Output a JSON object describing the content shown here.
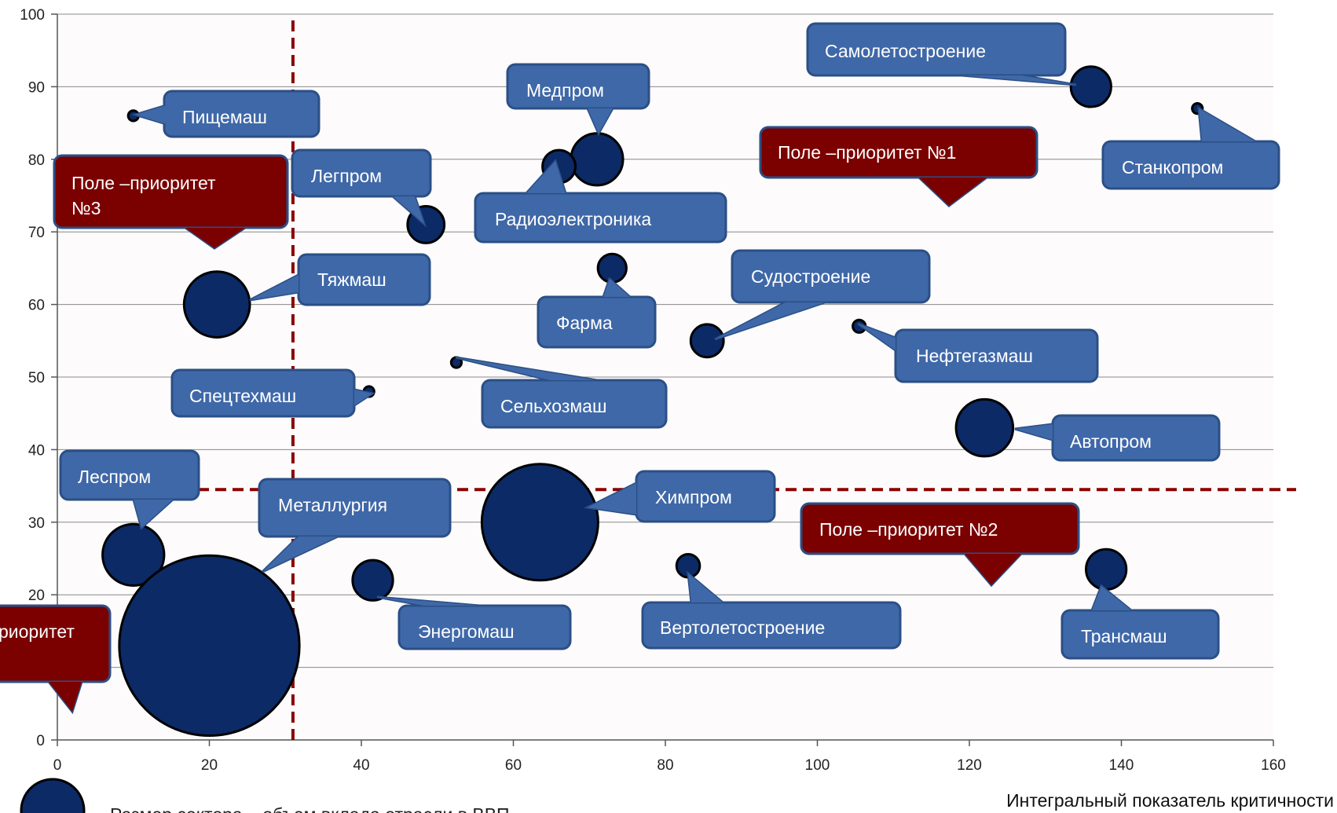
{
  "chart_data": {
    "type": "bubble",
    "xlabel": "Интегральный показатель критичности",
    "ylabel": "",
    "xlim": [
      0,
      160
    ],
    "ylim": [
      0,
      100
    ],
    "xticks": [
      0,
      20,
      40,
      60,
      80,
      100,
      120,
      140,
      160
    ],
    "yticks": [
      0,
      10,
      20,
      30,
      40,
      50,
      60,
      70,
      80,
      90,
      100
    ],
    "grid": "horizontal",
    "bubble_color": "#0b2a66",
    "legend_note": "Размер сектора – объем вклада отрасли в ВВП",
    "threshold_lines": [
      {
        "axis": "x",
        "value": 31,
        "color": "#8b0000",
        "style": "dashed"
      },
      {
        "axis": "y",
        "value": 34.5,
        "color": "#8b0000",
        "style": "dashed"
      }
    ],
    "points": [
      {
        "label": "Самолетостроение",
        "x": 136,
        "y": 90,
        "size": 3
      },
      {
        "label": "Медпром",
        "x": 71,
        "y": 80,
        "size": 5
      },
      {
        "label": "Радиоэлектроника",
        "x": 66,
        "y": 79,
        "size": 2
      },
      {
        "label": "Пищемаш",
        "x": 10,
        "y": 86,
        "size": 0.2
      },
      {
        "label": "Станкопром",
        "x": 150,
        "y": 87,
        "size": 0.2
      },
      {
        "label": "Легпром",
        "x": 48.5,
        "y": 71,
        "size": 2.5
      },
      {
        "label": "Тяжмаш",
        "x": 21,
        "y": 60,
        "size": 8
      },
      {
        "label": "Фарма",
        "x": 73,
        "y": 65,
        "size": 1.5
      },
      {
        "label": "Судостроение",
        "x": 85.5,
        "y": 55,
        "size": 2
      },
      {
        "label": "Нефтегазмаш",
        "x": 105.5,
        "y": 57,
        "size": 0.3
      },
      {
        "label": "Спецтехмаш",
        "x": 41,
        "y": 48,
        "size": 0.2
      },
      {
        "label": "Сельхозмаш",
        "x": 52.5,
        "y": 52,
        "size": 0.2
      },
      {
        "label": "Автопром",
        "x": 122,
        "y": 43,
        "size": 6
      },
      {
        "label": "Леспром",
        "x": 10,
        "y": 25.5,
        "size": 7
      },
      {
        "label": "Металлургия",
        "x": 20,
        "y": 13,
        "size": 60
      },
      {
        "label": "Химпром",
        "x": 63.5,
        "y": 30,
        "size": 25
      },
      {
        "label": "Энергомаш",
        "x": 41.5,
        "y": 22,
        "size": 3
      },
      {
        "label": "Вертолетостроение",
        "x": 83,
        "y": 24,
        "size": 1
      },
      {
        "label": "Трансмаш",
        "x": 138,
        "y": 23.5,
        "size": 3
      }
    ],
    "priority_callouts": [
      {
        "label": "Поле –приоритет №1",
        "color": "#7b0000"
      },
      {
        "label": "Поле –приоритет №2",
        "color": "#7b0000"
      },
      {
        "label": "Поле –приоритет №3",
        "color": "#7b0000"
      },
      {
        "label": "риоритет",
        "color": "#7b0000"
      }
    ]
  }
}
